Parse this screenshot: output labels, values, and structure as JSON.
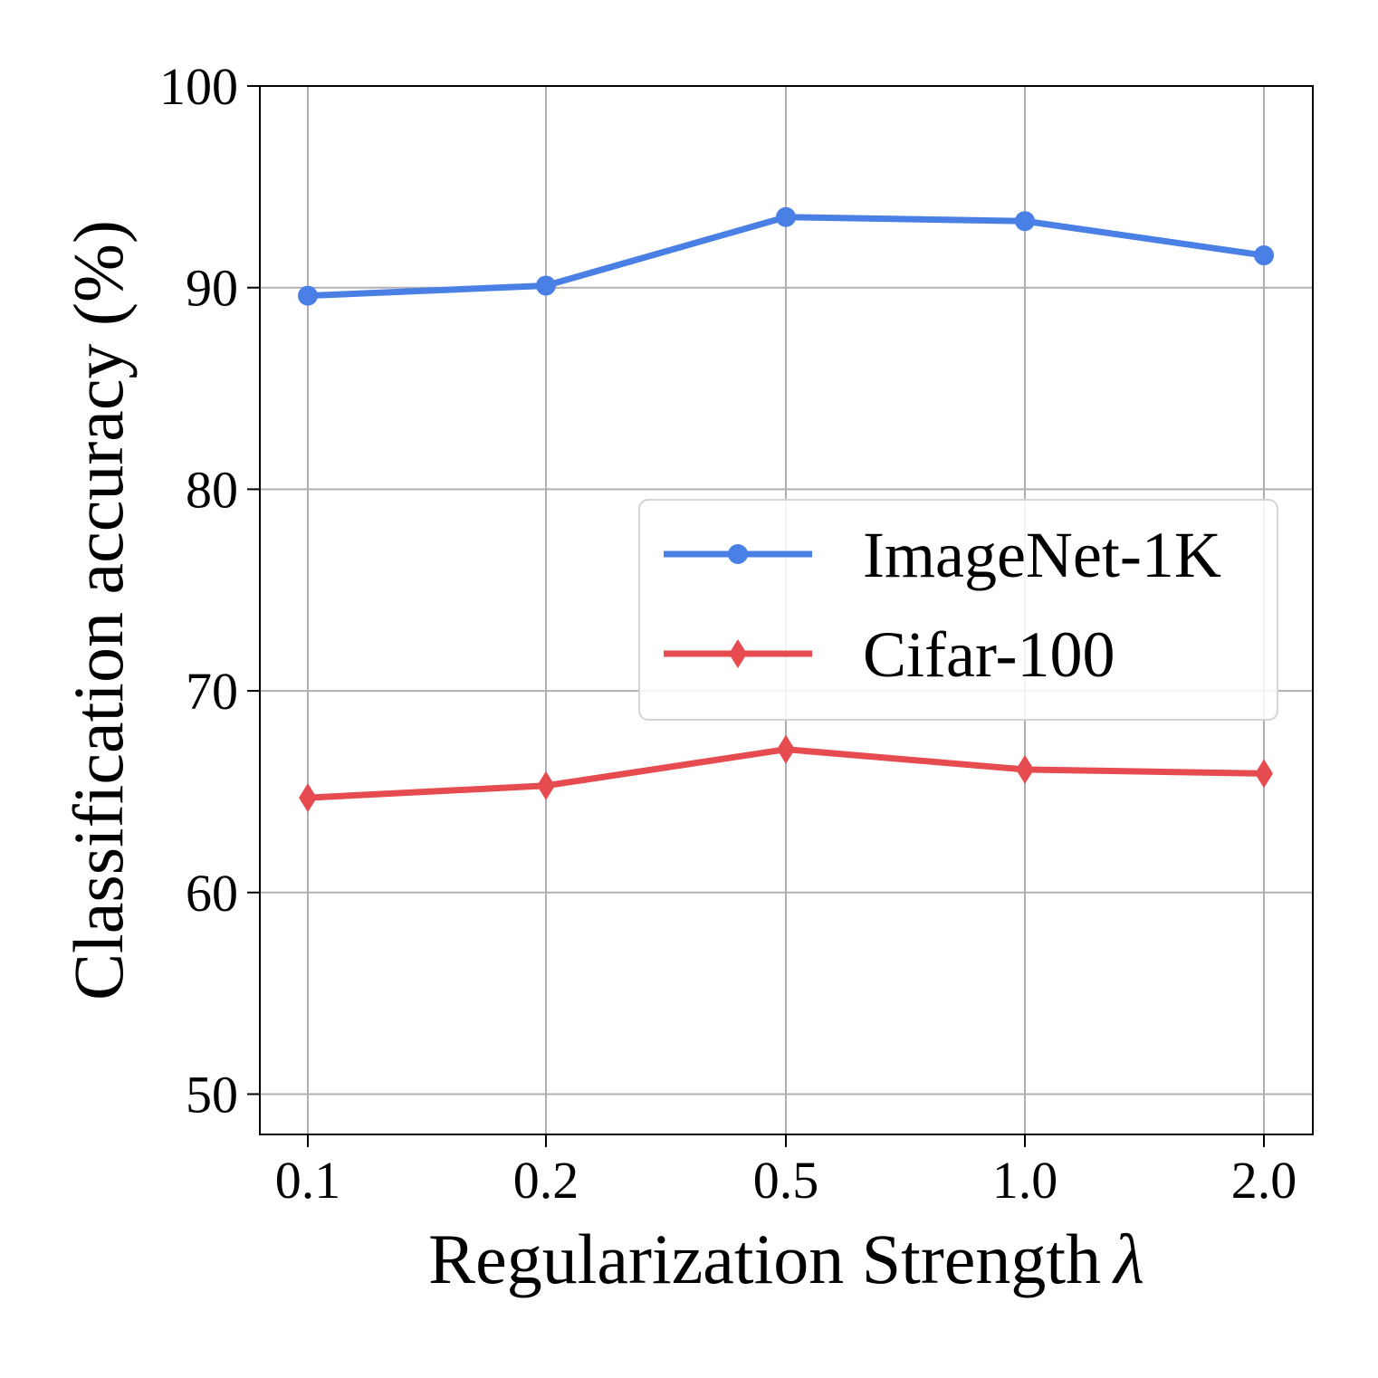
{
  "chart_data": {
    "type": "line",
    "categories": [
      "0.1",
      "0.2",
      "0.5",
      "1.0",
      "2.0"
    ],
    "xlabel": "Regularization Strength",
    "xlabel_symbol": "λ",
    "ylabel": "Classification accuracy (%)",
    "ylim": [
      48,
      100
    ],
    "yticks": [
      "50",
      "60",
      "70",
      "80",
      "90",
      "100"
    ],
    "grid": true,
    "legend_position": "center-right",
    "series": [
      {
        "name": "ImageNet-1K",
        "marker": "circle",
        "color": "#4a7fe5",
        "values": [
          89.6,
          90.1,
          93.5,
          93.3,
          91.6
        ]
      },
      {
        "name": "Cifar-100",
        "marker": "diamond",
        "color": "#e54b4f",
        "values": [
          64.7,
          65.3,
          67.1,
          66.1,
          65.9
        ]
      }
    ]
  }
}
